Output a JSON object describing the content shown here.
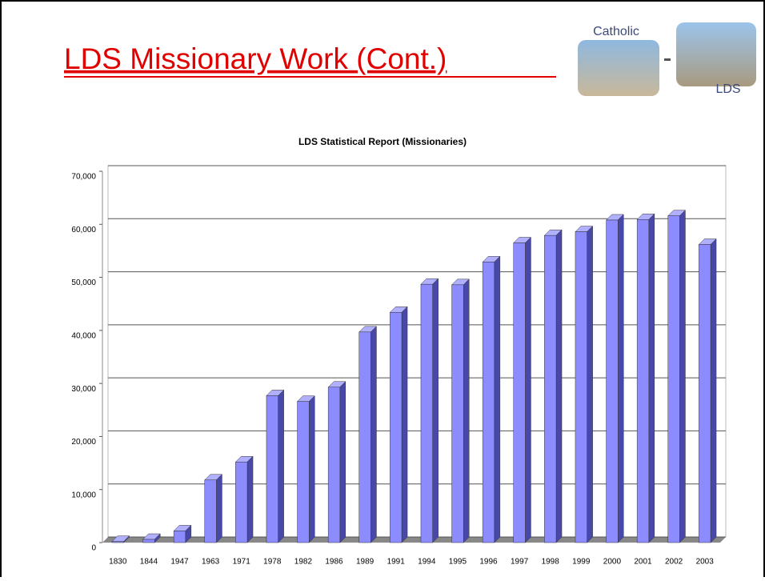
{
  "header": {
    "title": "LDS Missionary Work (Cont.)",
    "logo_left": "Catholic",
    "logo_right": "LDS"
  },
  "chart_data": {
    "type": "bar",
    "title": "LDS Statistical Report (Missionaries)",
    "categories": [
      "1830",
      "1844",
      "1947",
      "1963",
      "1971",
      "1978",
      "1982",
      "1986",
      "1989",
      "1991",
      "1994",
      "1995",
      "1996",
      "1997",
      "1998",
      "1999",
      "2000",
      "2001",
      "2002",
      "2003"
    ],
    "values": [
      200,
      600,
      2200,
      11800,
      15200,
      27700,
      26600,
      29300,
      39700,
      43400,
      48700,
      48600,
      52900,
      56500,
      57900,
      58600,
      60800,
      60900,
      61600,
      56200
    ],
    "color": "#8c8cff",
    "ylim": [
      0,
      70000
    ],
    "yticks": [
      0,
      {
        "value": 10000,
        "label": "10,000"
      },
      {
        "value": 20000,
        "label": "20,000"
      },
      {
        "value": 30000,
        "label": "30,000"
      },
      {
        "value": 40000,
        "label": "40,000"
      },
      {
        "value": 50000,
        "label": "50,000"
      },
      {
        "value": 60000,
        "label": "60,000"
      },
      {
        "value": 70000,
        "label": "70,000"
      }
    ],
    "grid": true
  }
}
